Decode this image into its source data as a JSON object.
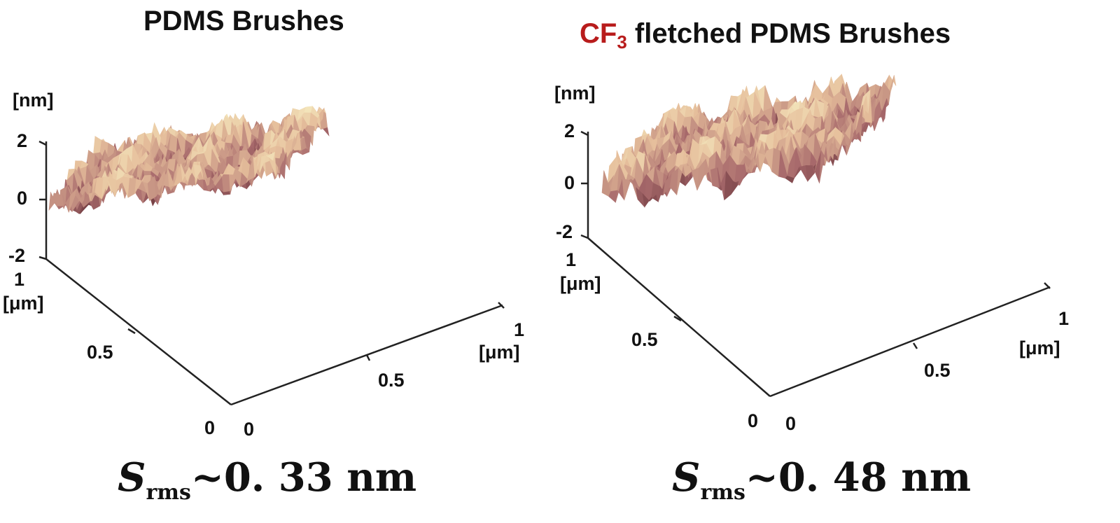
{
  "chart_data": [
    {
      "type": "surface3d",
      "title": "PDMS Brushes",
      "zlabel": "[nm]",
      "ylabel": "[μm]",
      "xlabel": "[μm]",
      "z_ticks": [
        "2",
        "0",
        "-2"
      ],
      "y_ticks": [
        "1",
        "0.5",
        "0"
      ],
      "x_ticks": [
        "0",
        "0.5",
        "1"
      ],
      "zlim": [
        -2,
        2
      ],
      "xlim": [
        0,
        1
      ],
      "ylim": [
        0,
        1
      ],
      "roughness_label": "~0. 33 nm",
      "roughness_nm": 0.33,
      "colormap": [
        "#5a2a30",
        "#a86a6c",
        "#e6bf9c",
        "#f7f0c4"
      ]
    },
    {
      "type": "surface3d",
      "title_prefix": "CF",
      "title_subscript": "3",
      "title_suffix": " fletched PDMS Brushes",
      "zlabel": "[nm]",
      "ylabel": "[μm]",
      "xlabel": "[μm]",
      "z_ticks": [
        "2",
        "0",
        "-2"
      ],
      "y_ticks": [
        "1",
        "0.5",
        "0"
      ],
      "x_ticks": [
        "0",
        "0.5",
        "1"
      ],
      "zlim": [
        -2,
        2
      ],
      "xlim": [
        0,
        1
      ],
      "ylim": [
        0,
        1
      ],
      "roughness_label": "~0. 48 nm",
      "roughness_nm": 0.48,
      "colormap": [
        "#5a2a30",
        "#a86a6c",
        "#e6bf9c",
        "#f7f0c4"
      ]
    }
  ],
  "srms_symbol": "S",
  "srms_subscript": "rms"
}
